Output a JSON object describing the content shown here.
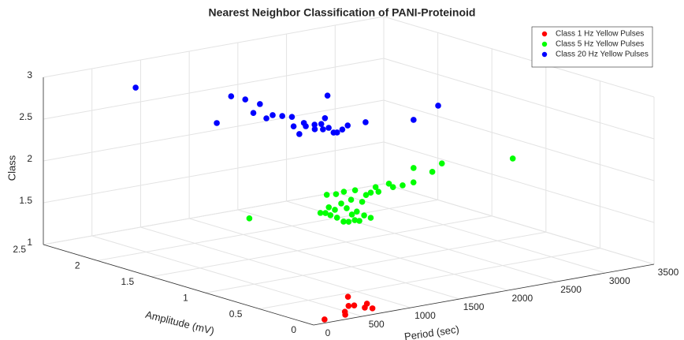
{
  "chart_data": {
    "type": "scatter3d",
    "title": "Nearest Neighbor Classification of PANI-Proteinoid",
    "xlabel": "Period (sec)",
    "ylabel": "Amplitude (mV)",
    "zlabel": "Class",
    "xlim": [
      0,
      3500
    ],
    "xticks": [
      0,
      500,
      1000,
      1500,
      2000,
      2500,
      3000,
      3500
    ],
    "ylim": [
      0,
      2.5
    ],
    "yticks": [
      0,
      0.5,
      1,
      1.5,
      2,
      2.5
    ],
    "zlim": [
      1,
      3
    ],
    "zticks": [
      1,
      1.5,
      2,
      2.5,
      3
    ],
    "grid": true,
    "legend_loc": "northeast",
    "series": [
      {
        "name": "Class 1 Hz Yellow Pulses",
        "color": "#ff0000",
        "x": [
          190,
          488,
          425,
          637,
          831,
          684,
          704,
          804,
          738
        ],
        "y": [
          0.07,
          0.15,
          0.09,
          0.25,
          0.43,
          0.24,
          0.16,
          0.23,
          0.12
        ],
        "z": [
          1,
          1,
          1,
          1,
          1,
          1,
          1,
          1,
          1
        ]
      },
      {
        "name": "Class 5 Hz Yellow Pulses",
        "color": "#00ff00",
        "x": [
          84,
          659,
          689,
          673,
          663,
          619,
          649,
          723,
          737,
          834,
          819,
          995,
          929,
          827,
          922,
          886,
          876,
          1267,
          1141,
          1371,
          1091,
          1164,
          1339,
          1421,
          1571,
          1489,
          1730,
          1683,
          1782,
          1916,
          2228,
          2265,
          2508,
          3070,
          1166
        ],
        "y": [
          0.67,
          0.53,
          0.51,
          0.45,
          0.38,
          0.28,
          0.26,
          0.27,
          0.24,
          0.61,
          0.54,
          0.64,
          0.53,
          0.39,
          0.43,
          0.33,
          0.26,
          0.86,
          0.68,
          0.85,
          0.86,
          0.84,
          0.72,
          0.75,
          0.84,
          0.74,
          0.86,
          0.78,
          0.78,
          0.8,
          1.08,
          0.94,
          1.07,
          0.92,
          0.6
        ],
        "z": [
          2,
          2,
          2,
          2,
          2,
          2,
          2,
          2,
          2,
          2,
          2,
          2,
          2,
          2,
          2,
          2,
          2,
          2,
          2,
          2,
          2,
          2,
          2,
          2,
          2,
          2,
          2,
          2,
          2,
          2,
          2,
          2,
          2,
          2,
          2
        ]
      },
      {
        "name": "Class 20 Hz Yellow Pulses",
        "color": "#0000ff",
        "x": [
          371,
          127,
          797,
          820,
          815,
          581,
          548,
          657,
          700,
          744,
          550,
          420,
          689,
          631,
          721,
          623,
          779,
          928,
          674,
          744,
          672,
          697,
          795,
          917,
          1101,
          1432,
          1461,
          1925
        ],
        "y": [
          1.98,
          1.01,
          1.48,
          1.37,
          1.23,
          1.08,
          0.93,
          0.97,
          0.92,
          0.87,
          0.68,
          0.51,
          0.71,
          0.64,
          0.64,
          0.55,
          0.63,
          0.73,
          0.52,
          0.53,
          0.42,
          0.41,
          0.45,
          0.51,
          0.51,
          1.16,
          0.39,
          0.58
        ],
        "z": [
          3,
          3,
          3,
          3,
          3,
          3,
          3,
          3,
          3,
          3,
          3,
          3,
          3,
          3,
          3,
          3,
          3,
          3,
          3,
          3,
          3,
          3,
          3,
          3,
          3,
          3,
          3,
          3
        ]
      }
    ]
  }
}
